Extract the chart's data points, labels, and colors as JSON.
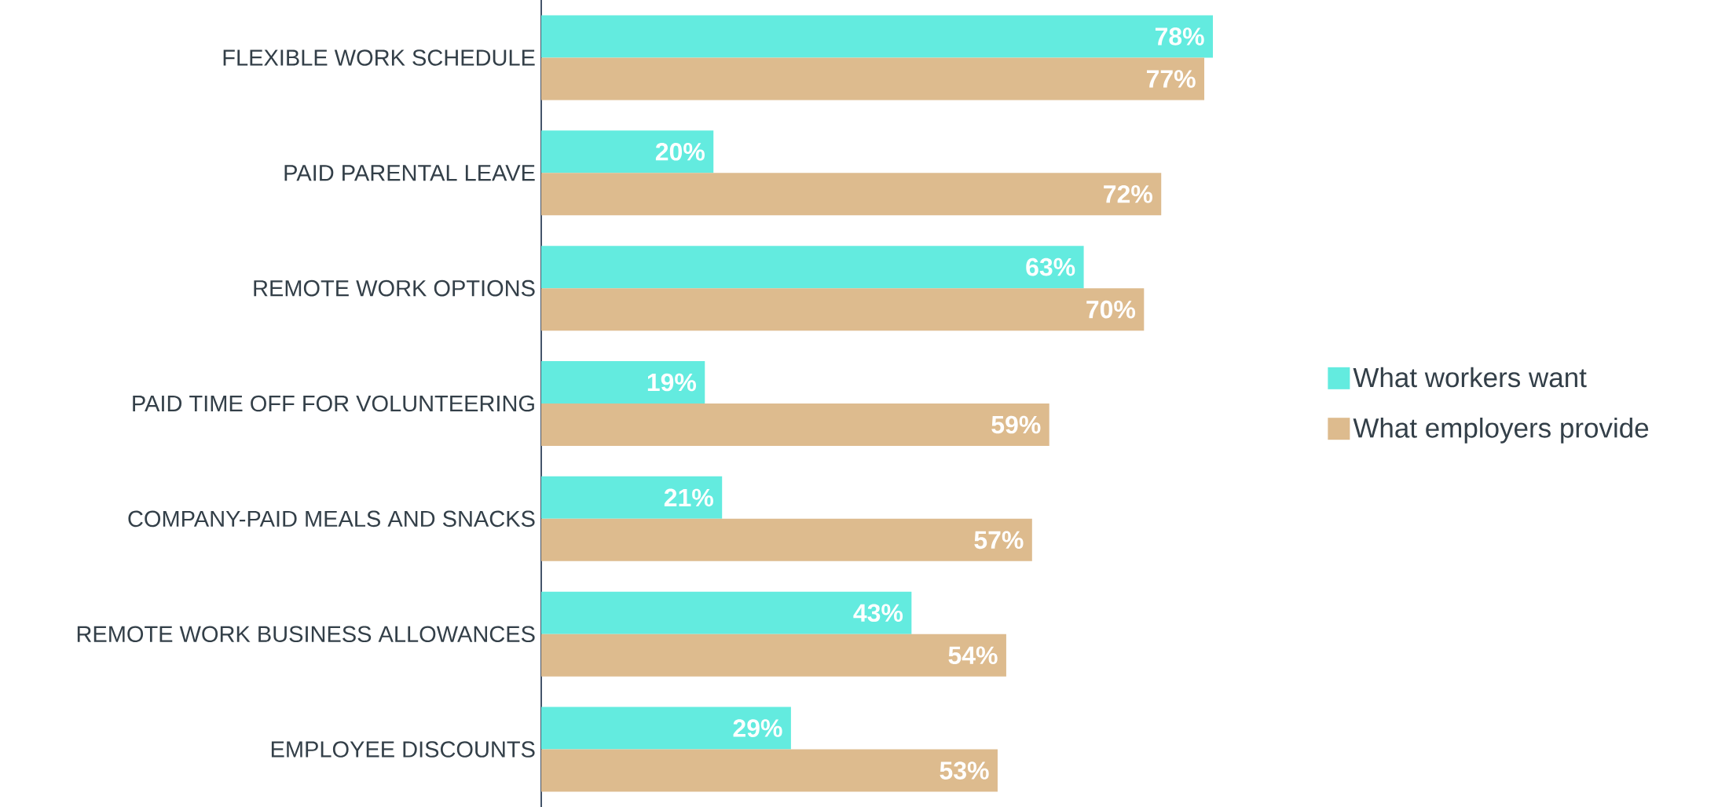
{
  "chart_data": {
    "type": "bar",
    "orientation": "horizontal",
    "legend": "right",
    "categories": [
      "FLEXIBLE WORK SCHEDULE",
      "PAID PARENTAL LEAVE",
      "REMOTE WORK OPTIONS",
      "PAID TIME OFF FOR VOLUNTEERING",
      "COMPANY-PAID MEALS AND SNACKS",
      "REMOTE WORK BUSINESS ALLOWANCES",
      "EMPLOYEE DISCOUNTS"
    ],
    "series": [
      {
        "name": "What workers want",
        "color": "#63ebdf",
        "values": [
          78,
          20,
          63,
          19,
          21,
          43,
          29
        ],
        "value_labels": [
          "78%",
          "20%",
          "63%",
          "19%",
          "21%",
          "43%",
          "29%"
        ]
      },
      {
        "name": "What employers provide",
        "color": "#ddbb8e",
        "values": [
          77,
          72,
          70,
          59,
          57,
          54,
          53
        ],
        "value_labels": [
          "77%",
          "72%",
          "70%",
          "59%",
          "57%",
          "54%",
          "53%"
        ]
      }
    ]
  }
}
